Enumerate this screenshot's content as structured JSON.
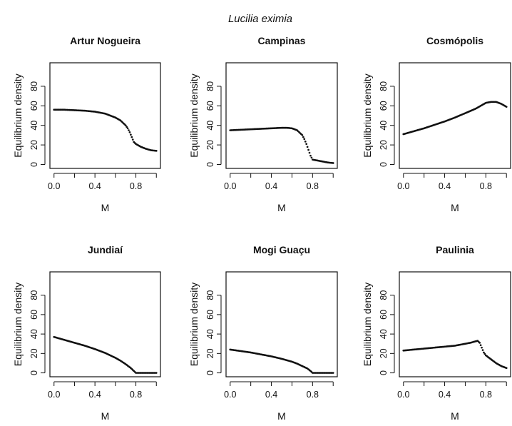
{
  "figure": {
    "supertitle": "Lucilia eximia",
    "background": "#ffffff",
    "ink_color": "#111111"
  },
  "chart_data": [
    {
      "type": "scatter",
      "title": "Artur Nogueira",
      "xlabel": "M",
      "ylabel": "Equilibrium density",
      "xlim": [
        0,
        1
      ],
      "ylim": [
        0,
        100
      ],
      "x_ticks": [
        "0.0",
        "0.4",
        "0.8"
      ],
      "y_ticks": [
        "0",
        "20",
        "40",
        "60",
        "80"
      ],
      "x": [
        0,
        0.1,
        0.2,
        0.3,
        0.4,
        0.5,
        0.6,
        0.65,
        0.7,
        0.72,
        0.74,
        0.76,
        0.78,
        0.8,
        0.85,
        0.9,
        0.95,
        1.0
      ],
      "y": [
        56,
        56,
        55.5,
        55,
        54,
        52,
        48,
        45,
        40,
        37,
        33,
        28,
        23,
        21,
        18,
        16,
        14.5,
        14
      ]
    },
    {
      "type": "scatter",
      "title": "Campinas",
      "xlabel": "M",
      "ylabel": "Equilibrium density",
      "xlim": [
        0,
        1
      ],
      "ylim": [
        0,
        100
      ],
      "x_ticks": [
        "0.0",
        "0.4",
        "0.8"
      ],
      "y_ticks": [
        "0",
        "20",
        "40",
        "60",
        "80"
      ],
      "x": [
        0,
        0.1,
        0.2,
        0.3,
        0.4,
        0.5,
        0.55,
        0.6,
        0.65,
        0.7,
        0.72,
        0.74,
        0.76,
        0.78,
        0.8,
        0.85,
        0.9,
        0.95,
        1.0
      ],
      "y": [
        35,
        35.5,
        36,
        36.5,
        37,
        37.5,
        37.5,
        37,
        35,
        30,
        26,
        21,
        15,
        9,
        5,
        4,
        3,
        2,
        1.5
      ]
    },
    {
      "type": "scatter",
      "title": "Cosmópolis",
      "xlabel": "M",
      "ylabel": "Equilibrium density",
      "xlim": [
        0,
        1
      ],
      "ylim": [
        0,
        100
      ],
      "x_ticks": [
        "0.0",
        "0.4",
        "0.8"
      ],
      "y_ticks": [
        "0",
        "20",
        "40",
        "60",
        "80"
      ],
      "x": [
        0,
        0.1,
        0.2,
        0.3,
        0.4,
        0.5,
        0.6,
        0.7,
        0.75,
        0.8,
        0.85,
        0.9,
        0.95,
        1.0
      ],
      "y": [
        31,
        34,
        37,
        40.5,
        44,
        48,
        52.5,
        57,
        60,
        63,
        64,
        64,
        62,
        59
      ]
    },
    {
      "type": "scatter",
      "title": "Jundiaí",
      "xlabel": "M",
      "ylabel": "Equilibrium density",
      "xlim": [
        0,
        1
      ],
      "ylim": [
        0,
        100
      ],
      "x_ticks": [
        "0.0",
        "0.4",
        "0.8"
      ],
      "y_ticks": [
        "0",
        "20",
        "40",
        "60",
        "80"
      ],
      "x": [
        0,
        0.1,
        0.2,
        0.3,
        0.4,
        0.5,
        0.6,
        0.65,
        0.7,
        0.75,
        0.78,
        0.8,
        0.85,
        0.9,
        0.95,
        1.0
      ],
      "y": [
        37,
        34,
        31,
        28,
        24.5,
        20.5,
        15.5,
        12.5,
        9,
        5,
        2,
        0,
        0,
        0,
        0,
        0
      ]
    },
    {
      "type": "scatter",
      "title": "Mogi Guaçu",
      "xlabel": "M",
      "ylabel": "Equilibrium density",
      "xlim": [
        0,
        1
      ],
      "ylim": [
        0,
        100
      ],
      "x_ticks": [
        "0.0",
        "0.4",
        "0.8"
      ],
      "y_ticks": [
        "0",
        "20",
        "40",
        "60",
        "80"
      ],
      "x": [
        0,
        0.1,
        0.2,
        0.3,
        0.4,
        0.5,
        0.6,
        0.65,
        0.7,
        0.75,
        0.78,
        0.8,
        0.85,
        0.9,
        0.95,
        1.0
      ],
      "y": [
        24,
        22.5,
        21,
        19,
        17,
        14.5,
        11.5,
        9.5,
        7,
        4.5,
        2,
        0,
        0,
        0,
        0,
        0
      ]
    },
    {
      "type": "scatter",
      "title": "Paulinia",
      "xlabel": "M",
      "ylabel": "Equilibrium density",
      "xlim": [
        0,
        1
      ],
      "ylim": [
        0,
        100
      ],
      "x_ticks": [
        "0.0",
        "0.4",
        "0.8"
      ],
      "y_ticks": [
        "0",
        "20",
        "40",
        "60",
        "80"
      ],
      "x": [
        0,
        0.1,
        0.2,
        0.3,
        0.4,
        0.5,
        0.6,
        0.65,
        0.7,
        0.72,
        0.74,
        0.76,
        0.78,
        0.8,
        0.85,
        0.9,
        0.95,
        1.0
      ],
      "y": [
        23,
        24,
        25,
        26,
        27,
        28,
        30,
        31,
        32.5,
        33,
        31,
        26,
        21,
        18,
        14,
        10,
        7,
        5
      ]
    }
  ]
}
